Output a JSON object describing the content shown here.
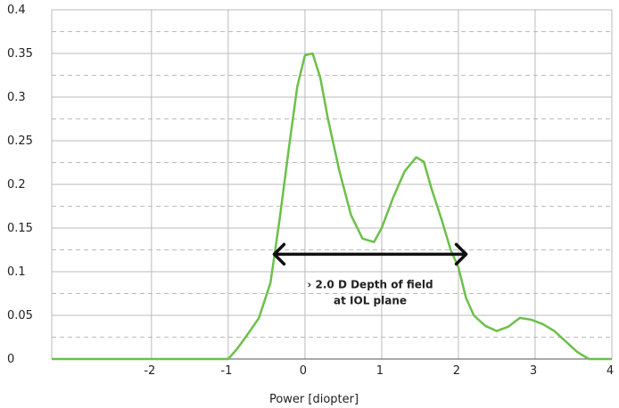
{
  "chart_data": {
    "type": "line",
    "xlabel": "Power [diopter]",
    "ylabel": "",
    "xlim": [
      -3.3,
      4.0
    ],
    "ylim": [
      0,
      0.4
    ],
    "x_ticks": [
      -2,
      -1,
      0,
      1,
      2,
      3,
      4
    ],
    "x_tick_labels": [
      "-2",
      "-1",
      "0",
      "1",
      "2",
      "3",
      "4"
    ],
    "y_ticks": [
      0,
      0.05,
      0.1,
      0.15,
      0.2,
      0.25,
      0.3,
      0.35,
      0.4
    ],
    "y_tick_labels": [
      "0",
      "0.05",
      "0.1",
      "0.15",
      "0.2",
      "0.25",
      "0.3",
      "0.35",
      "0.4"
    ],
    "grid": {
      "vertical_solid_at": [
        -3.3,
        -2,
        -1,
        0,
        1,
        2,
        3,
        4
      ],
      "horizontal_solid_at": [
        0.05,
        0.1,
        0.15,
        0.2,
        0.25,
        0.3,
        0.35,
        0.4
      ],
      "horizontal_dashed_at": [
        0.025,
        0.075,
        0.125,
        0.175,
        0.225,
        0.275,
        0.325,
        0.375
      ]
    },
    "colors": {
      "line": "#6cc04a",
      "arrow": "#111111",
      "grid": "#bbbbbb"
    },
    "series": [
      {
        "x": [
          -3.3,
          -1.0,
          -0.88,
          -0.75,
          -0.6,
          -0.45,
          -0.33,
          -0.2,
          -0.1,
          0.0,
          0.1,
          0.2,
          0.3,
          0.45,
          0.6,
          0.75,
          0.9,
          1.0,
          1.15,
          1.3,
          1.45,
          1.55,
          1.65,
          1.78,
          1.9,
          2.0,
          2.1,
          2.2,
          2.35,
          2.5,
          2.65,
          2.8,
          2.95,
          3.1,
          3.25,
          3.4,
          3.55,
          3.7,
          3.85,
          4.0
        ],
        "y": [
          0.0,
          0.0,
          0.012,
          0.028,
          0.047,
          0.087,
          0.16,
          0.248,
          0.312,
          0.348,
          0.35,
          0.322,
          0.275,
          0.215,
          0.165,
          0.138,
          0.134,
          0.15,
          0.185,
          0.215,
          0.231,
          0.226,
          0.195,
          0.16,
          0.125,
          0.105,
          0.07,
          0.05,
          0.038,
          0.032,
          0.037,
          0.047,
          0.045,
          0.04,
          0.032,
          0.02,
          0.008,
          0.0,
          0.0,
          0.0
        ]
      }
    ],
    "annotations": [
      {
        "type": "double-arrow",
        "x_start": -0.4,
        "x_end": 2.1,
        "y": 0.12,
        "line1": "› 2.0 D Depth of field",
        "line2": "at IOL plane"
      }
    ]
  }
}
